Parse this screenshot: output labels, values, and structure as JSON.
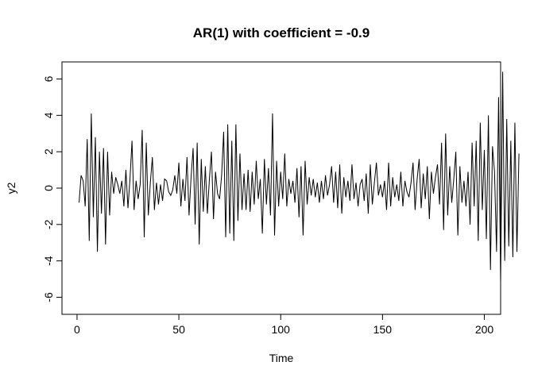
{
  "chart_data": {
    "type": "line",
    "title": "AR(1) with coefficient = -0.9",
    "xlabel": "Time",
    "ylabel": "y2",
    "xlim": [
      1,
      200
    ],
    "ylim": [
      -6,
      6
    ],
    "xticks": [
      0,
      50,
      100,
      150,
      200
    ],
    "yticks": [
      -6,
      -4,
      -2,
      0,
      2,
      4,
      6
    ],
    "grid": false,
    "legend": "none",
    "line_color": "#000000",
    "series": [
      {
        "values": [
          -0.8,
          0.7,
          0.4,
          -1.0,
          2.7,
          -2.9,
          4.1,
          -1.6,
          2.8,
          -3.5,
          2.0,
          -1.4,
          2.2,
          -3.1,
          2.0,
          -1.5,
          0.9,
          -0.3,
          0.6,
          0.2,
          -0.3,
          0.4,
          -1.0,
          1.0,
          -1.1,
          0.5,
          2.6,
          -1.2,
          0.4,
          -0.6,
          0.2,
          3.2,
          -2.7,
          2.5,
          -1.5,
          0.3,
          1.7,
          -1.2,
          0.3,
          -0.9,
          0.2,
          -0.7,
          0.5,
          0.4,
          -0.2,
          -0.4,
          -0.1,
          0.7,
          -0.3,
          1.4,
          -1.0,
          0.5,
          -0.7,
          1.7,
          -1.5,
          0.6,
          2.2,
          -2.0,
          2.5,
          -3.1,
          1.6,
          -1.3,
          1.2,
          -1.4,
          0.5,
          2.0,
          -1.7,
          0.9,
          -0.3,
          -0.6,
          0.7,
          3.1,
          -2.7,
          3.5,
          -2.5,
          2.6,
          -2.9,
          3.5,
          -1.8,
          1.9,
          -1.2,
          0.8,
          -1.2,
          1.0,
          -1.3,
          0.9,
          -0.9,
          1.5,
          -0.6,
          0.5,
          -2.5,
          1.6,
          -0.9,
          1.1,
          -1.5,
          4.1,
          -2.6,
          1.5,
          -1.0,
          0.9,
          -0.6,
          1.9,
          -1.0,
          0.5,
          -0.3,
          0.4,
          -0.8,
          1.1,
          -1.6,
          1.2,
          -2.6,
          1.5,
          -0.9,
          0.6,
          -0.4,
          0.5,
          -0.5,
          0.3,
          -0.8,
          0.4,
          -0.6,
          0.7,
          -0.4,
          0.2,
          1.2,
          -0.8,
          0.9,
          -1.1,
          1.3,
          -1.4,
          0.6,
          -0.5,
          0.4,
          -0.7,
          1.3,
          -0.6,
          0.3,
          -1.0,
          0.2,
          0.5,
          -0.7,
          0.8,
          -1.4,
          1.3,
          -0.9,
          0.3,
          1.4,
          -0.4,
          0.2,
          -0.5,
          0.4,
          -1.2,
          1.4,
          -1.0,
          0.6,
          -0.5,
          0.2,
          -0.7,
          0.9,
          -1.0,
          0.4,
          -0.2,
          -0.5,
          0.3,
          1.4,
          -1.2,
          0.5,
          1.6,
          -1.1,
          0.8,
          -0.6,
          1.2,
          -1.7,
          0.9,
          -0.3,
          0.6,
          1.3,
          -0.9,
          2.5,
          -2.3,
          3.0,
          -1.5,
          1.2,
          -0.8,
          0.5,
          2.0,
          -2.6,
          1.2,
          -0.8,
          0.4,
          -1.0,
          0.9,
          -2.0,
          2.5,
          -1.0,
          2.6,
          -2.9,
          3.6,
          -1.2,
          2.1,
          -2.8,
          4.0,
          -4.5,
          2.3,
          0.9,
          -3.5,
          5.0,
          -5.2,
          6.4,
          -4.0,
          3.8,
          -3.2,
          2.6,
          -3.8,
          3.6,
          -3.5,
          1.9
        ]
      }
    ]
  }
}
